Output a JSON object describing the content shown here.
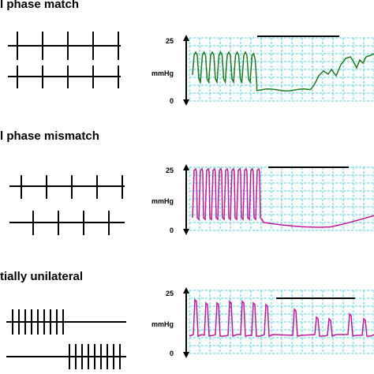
{
  "panels": [
    {
      "title": "l phase match",
      "y_max_label": "25",
      "y_unit_label": "mmHg",
      "y_min_label": "0",
      "trace_color": "#1e7a1e",
      "trace_kind": "match",
      "spike_trains": [
        {
          "spikes": 5
        },
        {
          "spikes": 5
        }
      ]
    },
    {
      "title": "l phase mismatch",
      "y_max_label": "25",
      "y_unit_label": "mmHg",
      "y_min_label": "0",
      "trace_color": "#c0189a",
      "trace_kind": "mismatch",
      "spike_trains": [
        {
          "spikes": 5
        },
        {
          "spikes": 5
        }
      ]
    },
    {
      "title": "tially unilateral",
      "y_max_label": "25",
      "y_unit_label": "mmHg",
      "y_min_label": "0",
      "trace_color": "#c0189a",
      "trace_kind": "unilateral",
      "spike_trains": [
        {
          "spikes": 9
        },
        {
          "spikes": 9
        }
      ]
    }
  ],
  "grid_color": "#49d2e8"
}
